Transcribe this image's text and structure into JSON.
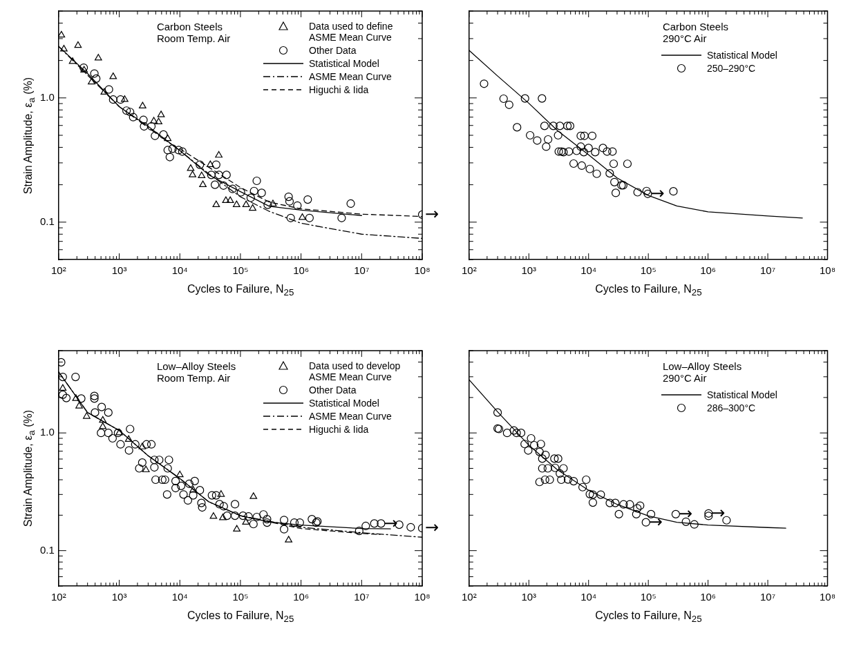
{
  "chart_data": [
    {
      "type": "scatter",
      "xlabel": "Cycles to Failure, N$_{25}$",
      "ylabel": "Strain Amplitude, ε$_{a}$ (%)",
      "log": "xy",
      "grid": false,
      "legend": "top right",
      "xlim": [
        100,
        100000000.0
      ],
      "ylim": [
        0.05,
        5
      ],
      "xticks": [
        {
          "value": 100,
          "label": "10²"
        },
        {
          "value": 200,
          "label": null
        },
        {
          "value": 300,
          "label": null
        },
        {
          "value": 400,
          "label": null
        },
        {
          "value": 500,
          "label": null
        },
        {
          "value": 600,
          "label": null
        },
        {
          "value": 700,
          "label": null
        },
        {
          "value": 800,
          "label": null
        },
        {
          "value": 900,
          "label": null
        },
        {
          "value": 1000.0,
          "label": "10³"
        },
        {
          "value": 2000.0,
          "label": null
        },
        {
          "value": 3000.0,
          "label": null
        },
        {
          "value": 4000.0,
          "label": null
        },
        {
          "value": 5000.0,
          "label": null
        },
        {
          "value": 6000.0,
          "label": null
        },
        {
          "value": 7000.0,
          "label": null
        },
        {
          "value": 8000.0,
          "label": null
        },
        {
          "value": 9000.0,
          "label": null
        },
        {
          "value": 10000.0,
          "label": "10⁴"
        },
        {
          "value": 20000.0,
          "label": null
        },
        {
          "value": 30000.0,
          "label": null
        },
        {
          "value": 40000.0,
          "label": null
        },
        {
          "value": 50000.0,
          "label": null
        },
        {
          "value": 60000.0,
          "label": null
        },
        {
          "value": 70000.0,
          "label": null
        },
        {
          "value": 80000.0,
          "label": null
        },
        {
          "value": 90000.0,
          "label": null
        },
        {
          "value": 100000.0,
          "label": "10⁵"
        },
        {
          "value": 200000.0,
          "label": null
        },
        {
          "value": 300000.0,
          "label": null
        },
        {
          "value": 400000.0,
          "label": null
        },
        {
          "value": 500000.0,
          "label": null
        },
        {
          "value": 600000.0,
          "label": null
        },
        {
          "value": 700000.0,
          "label": null
        },
        {
          "value": 800000.0,
          "label": null
        },
        {
          "value": 900000.0,
          "label": null
        },
        {
          "value": 1000000.0,
          "label": "10⁶"
        },
        {
          "value": 2000000.0,
          "label": null
        },
        {
          "value": 3000000.0,
          "label": null
        },
        {
          "value": 4000000.0,
          "label": null
        },
        {
          "value": 5000000.0,
          "label": null
        },
        {
          "value": 6000000.0,
          "label": null
        },
        {
          "value": 7000000.0,
          "label": null
        },
        {
          "value": 8000000.0,
          "label": null
        },
        {
          "value": 9000000.0,
          "label": null
        },
        {
          "value": 10000000.0,
          "label": "10⁷"
        },
        {
          "value": 20000000.0,
          "label": null
        },
        {
          "value": 30000000.0,
          "label": null
        },
        {
          "value": 40000000.0,
          "label": null
        },
        {
          "value": 50000000.0,
          "label": null
        },
        {
          "value": 60000000.0,
          "label": null
        },
        {
          "value": 70000000.0,
          "label": null
        },
        {
          "value": 80000000.0,
          "label": null
        },
        {
          "value": 90000000.0,
          "label": null
        },
        {
          "value": 100000000.0,
          "label": "10⁸"
        }
      ],
      "yticks": [
        {
          "value": 0.05,
          "label": null
        },
        {
          "value": 0.06,
          "label": null
        },
        {
          "value": 0.07,
          "label": null
        },
        {
          "value": 0.08,
          "label": null
        },
        {
          "value": 0.09,
          "label": null
        },
        {
          "value": 0.1,
          "label": "0.1"
        },
        {
          "value": 0.2,
          "label": null
        },
        {
          "value": 0.3,
          "label": null
        },
        {
          "value": 0.4,
          "label": null
        },
        {
          "value": 0.5,
          "label": null
        },
        {
          "value": 0.6,
          "label": null
        },
        {
          "value": 0.7,
          "label": null
        },
        {
          "value": 0.8,
          "label": null
        },
        {
          "value": 0.9,
          "label": null
        },
        {
          "value": 1,
          "label": "1.0"
        },
        {
          "value": 2,
          "label": null
        },
        {
          "value": 3,
          "label": null
        },
        {
          "value": 4,
          "label": null
        },
        {
          "value": 5,
          "label": null
        }
      ],
      "annotations": [
        "Carbon Steels Room Temp. Air",
        {
          "text": "→",
          "x": 100000000.0,
          "y": 0.115
        }
      ],
      "series": [
        {
          "name": "Data used to define ASME Mean Curve",
          "type": "scatter",
          "marker": "triangle",
          "color": "#000000",
          "x": [
            111,
            122,
            209,
            170,
            263,
            452,
            349,
            566,
            794,
            1230,
            2430,
            4900,
            3720,
            4470,
            6310,
            15100,
            16200,
            22900,
            24000,
            31800,
            44000,
            39800,
            57500,
            67800,
            86300,
            124000,
            159000,
            344000,
            1050000
          ],
          "values": [
            3.2,
            2.47,
            2.64,
            1.96,
            1.67,
            2.09,
            1.34,
            1.11,
            1.48,
            0.97,
            0.86,
            0.73,
            0.65,
            0.64,
            0.47,
            0.27,
            0.24,
            0.236,
            0.2,
            0.29,
            0.345,
            0.138,
            0.149,
            0.149,
            0.138,
            0.138,
            0.129,
            0.14,
            0.109
          ]
        },
        {
          "name": "Other Data",
          "type": "scatter",
          "marker": "circle",
          "color": "#000000",
          "x": [
            259,
            389,
            417,
            676,
            794,
            1050,
            1320,
            1510,
            1700,
            2510,
            2570,
            3390,
            3890,
            5370,
            6310,
            6840,
            7590,
            9550,
            11000,
            21400,
            39800,
            33100,
            44200,
            58900,
            38000,
            52500,
            74100,
            102000,
            168000,
            186000,
            224000,
            148000,
            282000,
            624000,
            646000,
            871000,
            1290000,
            676000,
            1380000,
            4680000,
            6610000,
            100000000.0
          ],
          "values": [
            1.75,
            1.57,
            1.43,
            1.17,
            0.97,
            0.97,
            0.79,
            0.77,
            0.7,
            0.665,
            0.59,
            0.59,
            0.495,
            0.507,
            0.38,
            0.334,
            0.39,
            0.38,
            0.37,
            0.29,
            0.29,
            0.24,
            0.24,
            0.24,
            0.2,
            0.197,
            0.185,
            0.174,
            0.178,
            0.215,
            0.172,
            0.157,
            0.138,
            0.16,
            0.147,
            0.136,
            0.152,
            0.108,
            0.108,
            0.108,
            0.141,
            0.115
          ]
        },
        {
          "name": "Statistical Model",
          "type": "line",
          "line_style": "solid",
          "marker": "none",
          "color": "#000000",
          "x": [
            100,
            300,
            1000,
            3000,
            10000,
            30000,
            100000,
            300000,
            1000000.0,
            10000000.0
          ],
          "values": [
            2.6,
            1.57,
            0.85,
            0.59,
            0.377,
            0.24,
            0.176,
            0.134,
            0.125,
            0.113
          ]
        },
        {
          "name": "ASME Mean Curve",
          "type": "line",
          "line_style": "dashdot",
          "marker": "none",
          "color": "#000000",
          "x": [
            100,
            1000,
            10000,
            30000,
            100000,
            300000,
            1000000.0,
            10000000.0,
            100000000.0
          ],
          "values": [
            2.6,
            0.85,
            0.377,
            0.245,
            0.16,
            0.122,
            0.098,
            0.08,
            0.074
          ]
        },
        {
          "name": "Higuchi & Iida",
          "type": "line",
          "line_style": "dashed",
          "marker": "none",
          "color": "#000000",
          "x": [
            10000,
            100000,
            300000,
            1000000.0,
            10000000.0,
            100000000.0
          ],
          "values": [
            0.39,
            0.19,
            0.145,
            0.128,
            0.116,
            0.111
          ]
        }
      ]
    },
    {
      "type": "scatter",
      "xlabel": "Cycles to Failure, N$_{25}$",
      "log": "xy",
      "grid": false,
      "legend": "top right",
      "tick_labels": "x",
      "xlim": [
        100,
        100000000.0
      ],
      "ylim": [
        0.05,
        5
      ],
      "xticks": [
        {
          "value": 100,
          "label": "10²"
        },
        {
          "value": 200,
          "label": null
        },
        {
          "value": 300,
          "label": null
        },
        {
          "value": 400,
          "label": null
        },
        {
          "value": 500,
          "label": null
        },
        {
          "value": 600,
          "label": null
        },
        {
          "value": 700,
          "label": null
        },
        {
          "value": 800,
          "label": null
        },
        {
          "value": 900,
          "label": null
        },
        {
          "value": 1000.0,
          "label": "10³"
        },
        {
          "value": 2000.0,
          "label": null
        },
        {
          "value": 3000.0,
          "label": null
        },
        {
          "value": 4000.0,
          "label": null
        },
        {
          "value": 5000.0,
          "label": null
        },
        {
          "value": 6000.0,
          "label": null
        },
        {
          "value": 7000.0,
          "label": null
        },
        {
          "value": 8000.0,
          "label": null
        },
        {
          "value": 9000.0,
          "label": null
        },
        {
          "value": 10000.0,
          "label": "10⁴"
        },
        {
          "value": 20000.0,
          "label": null
        },
        {
          "value": 30000.0,
          "label": null
        },
        {
          "value": 40000.0,
          "label": null
        },
        {
          "value": 50000.0,
          "label": null
        },
        {
          "value": 60000.0,
          "label": null
        },
        {
          "value": 70000.0,
          "label": null
        },
        {
          "value": 80000.0,
          "label": null
        },
        {
          "value": 90000.0,
          "label": null
        },
        {
          "value": 100000.0,
          "label": "10⁵"
        },
        {
          "value": 200000.0,
          "label": null
        },
        {
          "value": 300000.0,
          "label": null
        },
        {
          "value": 400000.0,
          "label": null
        },
        {
          "value": 500000.0,
          "label": null
        },
        {
          "value": 600000.0,
          "label": null
        },
        {
          "value": 700000.0,
          "label": null
        },
        {
          "value": 800000.0,
          "label": null
        },
        {
          "value": 900000.0,
          "label": null
        },
        {
          "value": 1000000.0,
          "label": "10⁶"
        },
        {
          "value": 2000000.0,
          "label": null
        },
        {
          "value": 3000000.0,
          "label": null
        },
        {
          "value": 4000000.0,
          "label": null
        },
        {
          "value": 5000000.0,
          "label": null
        },
        {
          "value": 6000000.0,
          "label": null
        },
        {
          "value": 7000000.0,
          "label": null
        },
        {
          "value": 8000000.0,
          "label": null
        },
        {
          "value": 9000000.0,
          "label": null
        },
        {
          "value": 10000000.0,
          "label": "10⁷"
        },
        {
          "value": 20000000.0,
          "label": null
        },
        {
          "value": 30000000.0,
          "label": null
        },
        {
          "value": 40000000.0,
          "label": null
        },
        {
          "value": 50000000.0,
          "label": null
        },
        {
          "value": 60000000.0,
          "label": null
        },
        {
          "value": 70000000.0,
          "label": null
        },
        {
          "value": 80000000.0,
          "label": null
        },
        {
          "value": 90000000.0,
          "label": null
        },
        {
          "value": 100000000.0,
          "label": "10⁸"
        }
      ],
      "yticks": [
        {
          "value": 0.05,
          "label": null
        },
        {
          "value": 0.06,
          "label": null
        },
        {
          "value": 0.07,
          "label": null
        },
        {
          "value": 0.08,
          "label": null
        },
        {
          "value": 0.09,
          "label": null
        },
        {
          "value": 0.1,
          "label": null
        },
        {
          "value": 0.2,
          "label": null
        },
        {
          "value": 0.3,
          "label": null
        },
        {
          "value": 0.4,
          "label": null
        },
        {
          "value": 0.5,
          "label": null
        },
        {
          "value": 0.6,
          "label": null
        },
        {
          "value": 0.7,
          "label": null
        },
        {
          "value": 0.8,
          "label": null
        },
        {
          "value": 0.9,
          "label": null
        },
        {
          "value": 1,
          "label": null
        },
        {
          "value": 2,
          "label": null
        },
        {
          "value": 3,
          "label": null
        },
        {
          "value": 4,
          "label": null
        },
        {
          "value": 5,
          "label": null
        }
      ],
      "annotations": [
        "Carbon Steels 290°C Air",
        {
          "text": "→",
          "x": 98000,
          "y": 0.169
        }
      ],
      "series": [
        {
          "name": "Statistical Model",
          "type": "line",
          "line_style": "solid",
          "marker": "none",
          "color": "#000000",
          "x": [
            100,
            300,
            1000,
            3000,
            10000,
            30000,
            100000,
            300000,
            1000000.0,
            10000000.0,
            38000000.0
          ],
          "values": [
            2.41,
            1.5,
            0.905,
            0.547,
            0.348,
            0.227,
            0.164,
            0.135,
            0.121,
            0.112,
            0.108
          ]
        },
        {
          "name": "250–290°C",
          "type": "scatter",
          "marker": "circle",
          "color": "#000000",
          "x": [
            178,
            378,
            468,
            863,
            1660,
            635,
            1050,
            1380,
            1950,
            2100,
            1830,
            2570,
            3310,
            4420,
            4900,
            3090,
            3170,
            3510,
            3800,
            4680,
            6310,
            5620,
            7690,
            10500,
            13700,
            7400,
            8510,
            11500,
            7400,
            10000,
            8320,
            12900,
            17400,
            20400,
            25100,
            26300,
            44700,
            22600,
            27100,
            28500,
            35600,
            38000,
            66100,
            93500,
            98000,
            263000
          ],
          "values": [
            1.3,
            0.985,
            0.88,
            0.99,
            0.99,
            0.58,
            0.5,
            0.454,
            0.405,
            0.463,
            0.595,
            0.595,
            0.595,
            0.595,
            0.595,
            0.5,
            0.37,
            0.37,
            0.366,
            0.37,
            0.375,
            0.296,
            0.285,
            0.268,
            0.245,
            0.495,
            0.495,
            0.495,
            0.405,
            0.395,
            0.366,
            0.366,
            0.395,
            0.37,
            0.37,
            0.295,
            0.295,
            0.247,
            0.21,
            0.172,
            0.198,
            0.198,
            0.174,
            0.178,
            0.169,
            0.177
          ]
        }
      ]
    },
    {
      "type": "scatter",
      "xlabel": "Cycles to Failure, N$_{25}$",
      "ylabel": "Strain Amplitude, ε$_{a}$ (%)",
      "log": "xy",
      "grid": false,
      "legend": "top right",
      "xlim": [
        100,
        100000000.0
      ],
      "ylim": [
        0.05,
        5
      ],
      "xticks": [
        {
          "value": 100,
          "label": "10²"
        },
        {
          "value": 200,
          "label": null
        },
        {
          "value": 300,
          "label": null
        },
        {
          "value": 400,
          "label": null
        },
        {
          "value": 500,
          "label": null
        },
        {
          "value": 600,
          "label": null
        },
        {
          "value": 700,
          "label": null
        },
        {
          "value": 800,
          "label": null
        },
        {
          "value": 900,
          "label": null
        },
        {
          "value": 1000.0,
          "label": "10³"
        },
        {
          "value": 2000.0,
          "label": null
        },
        {
          "value": 3000.0,
          "label": null
        },
        {
          "value": 4000.0,
          "label": null
        },
        {
          "value": 5000.0,
          "label": null
        },
        {
          "value": 6000.0,
          "label": null
        },
        {
          "value": 7000.0,
          "label": null
        },
        {
          "value": 8000.0,
          "label": null
        },
        {
          "value": 9000.0,
          "label": null
        },
        {
          "value": 10000.0,
          "label": "10⁴"
        },
        {
          "value": 20000.0,
          "label": null
        },
        {
          "value": 30000.0,
          "label": null
        },
        {
          "value": 40000.0,
          "label": null
        },
        {
          "value": 50000.0,
          "label": null
        },
        {
          "value": 60000.0,
          "label": null
        },
        {
          "value": 70000.0,
          "label": null
        },
        {
          "value": 80000.0,
          "label": null
        },
        {
          "value": 90000.0,
          "label": null
        },
        {
          "value": 100000.0,
          "label": "10⁵"
        },
        {
          "value": 200000.0,
          "label": null
        },
        {
          "value": 300000.0,
          "label": null
        },
        {
          "value": 400000.0,
          "label": null
        },
        {
          "value": 500000.0,
          "label": null
        },
        {
          "value": 600000.0,
          "label": null
        },
        {
          "value": 700000.0,
          "label": null
        },
        {
          "value": 800000.0,
          "label": null
        },
        {
          "value": 900000.0,
          "label": null
        },
        {
          "value": 1000000.0,
          "label": "10⁶"
        },
        {
          "value": 2000000.0,
          "label": null
        },
        {
          "value": 3000000.0,
          "label": null
        },
        {
          "value": 4000000.0,
          "label": null
        },
        {
          "value": 5000000.0,
          "label": null
        },
        {
          "value": 6000000.0,
          "label": null
        },
        {
          "value": 7000000.0,
          "label": null
        },
        {
          "value": 8000000.0,
          "label": null
        },
        {
          "value": 9000000.0,
          "label": null
        },
        {
          "value": 10000000.0,
          "label": "10⁷"
        },
        {
          "value": 20000000.0,
          "label": null
        },
        {
          "value": 30000000.0,
          "label": null
        },
        {
          "value": 40000000.0,
          "label": null
        },
        {
          "value": 50000000.0,
          "label": null
        },
        {
          "value": 60000000.0,
          "label": null
        },
        {
          "value": 70000000.0,
          "label": null
        },
        {
          "value": 80000000.0,
          "label": null
        },
        {
          "value": 90000000.0,
          "label": null
        },
        {
          "value": 100000000.0,
          "label": "10⁸"
        }
      ],
      "yticks": [
        {
          "value": 0.05,
          "label": null
        },
        {
          "value": 0.06,
          "label": null
        },
        {
          "value": 0.07,
          "label": null
        },
        {
          "value": 0.08,
          "label": null
        },
        {
          "value": 0.09,
          "label": null
        },
        {
          "value": 0.1,
          "label": "0.1"
        },
        {
          "value": 0.2,
          "label": null
        },
        {
          "value": 0.3,
          "label": null
        },
        {
          "value": 0.4,
          "label": null
        },
        {
          "value": 0.5,
          "label": null
        },
        {
          "value": 0.6,
          "label": null
        },
        {
          "value": 0.7,
          "label": null
        },
        {
          "value": 0.8,
          "label": null
        },
        {
          "value": 0.9,
          "label": null
        },
        {
          "value": 1,
          "label": "1.0"
        },
        {
          "value": 2,
          "label": null
        },
        {
          "value": 3,
          "label": null
        },
        {
          "value": 4,
          "label": null
        },
        {
          "value": 5,
          "label": null
        }
      ],
      "annotations": [
        "Low–Alloy Steels Room Temp. Air",
        {
          "text": "→",
          "x": 20900000.0,
          "y": 0.17
        },
        {
          "text": "→",
          "x": 100000000.0,
          "y": 0.155
        }
      ],
      "series": [
        {
          "name": "Data used to develop ASME Mean Curve",
          "type": "scatter",
          "marker": "triangle",
          "color": "#000000",
          "x": [
            117,
            193,
            218,
            290,
            535,
            535,
            1000,
            1430,
            2400,
            2760,
            10000,
            16600,
            47900,
            35900,
            51300,
            87100,
            123000,
            164000,
            624000
          ],
          "values": [
            2.39,
            1.96,
            1.69,
            1.38,
            1.28,
            1.13,
            1.0,
            0.88,
            0.76,
            0.485,
            0.44,
            0.326,
            0.3,
            0.195,
            0.19,
            0.152,
            0.174,
            0.288,
            0.123
          ]
        },
        {
          "name": "Other Data",
          "type": "scatter",
          "marker": "circle",
          "color": "#000000",
          "x": [
            110,
            117,
            190,
            134,
            117,
            236,
            389,
            389,
            513,
            398,
            661,
            501,
            661,
            776,
            955,
            1510,
            1050,
            1450,
            1840,
            3390,
            2820,
            2140,
            2400,
            3800,
            4570,
            6610,
            3800,
            6310,
            3980,
            5130,
            5690,
            8510,
            8510,
            10500,
            14300,
            17600,
            6170,
            11500,
            13600,
            16600,
            21400,
            22700,
            23400,
            33900,
            39800,
            45200,
            53100,
            81300,
            60300,
            81300,
            110000,
            136000,
            186000,
            240000,
            275000,
            164000,
            275000,
            525000,
            525000,
            776000,
            955000,
            1510000,
            1780000,
            1860000,
            9120000,
            11700000,
            16200000,
            20900000,
            41700000,
            64600000,
            100000000.0
          ],
          "values": [
            3.98,
            2.99,
            2.99,
            1.98,
            2.11,
            1.96,
            2.06,
            1.96,
            1.66,
            1.49,
            1.49,
            1.0,
            1.0,
            0.9,
            1.0,
            1.08,
            0.8,
            0.71,
            0.8,
            0.8,
            0.8,
            0.5,
            0.56,
            0.59,
            0.59,
            0.59,
            0.51,
            0.5,
            0.4,
            0.4,
            0.4,
            0.39,
            0.34,
            0.355,
            0.37,
            0.39,
            0.3,
            0.3,
            0.267,
            0.295,
            0.326,
            0.254,
            0.233,
            0.295,
            0.295,
            0.248,
            0.238,
            0.248,
            0.198,
            0.198,
            0.198,
            0.195,
            0.193,
            0.203,
            0.185,
            0.168,
            0.173,
            0.182,
            0.152,
            0.173,
            0.173,
            0.185,
            0.173,
            0.177,
            0.147,
            0.162,
            0.17,
            0.17,
            0.166,
            0.158,
            0.155
          ]
        },
        {
          "name": "Statistical Model",
          "type": "line",
          "line_style": "solid",
          "marker": "none",
          "color": "#000000",
          "x": [
            100,
            300,
            1000,
            3000,
            10000,
            30000,
            100000,
            300000,
            1000000.0,
            10000000.0,
            30000000.0
          ],
          "values": [
            3.3,
            1.49,
            1.05,
            0.64,
            0.41,
            0.26,
            0.198,
            0.175,
            0.165,
            0.154,
            0.153
          ]
        },
        {
          "name": "ASME Mean Curve",
          "type": "line",
          "line_style": "dashdot",
          "marker": "none",
          "color": "#000000",
          "x": [
            100,
            300,
            1000,
            3000,
            10000,
            30000,
            100000,
            1000000.0,
            10000000.0,
            100000000.0
          ],
          "values": [
            3.3,
            1.49,
            1.05,
            0.64,
            0.41,
            0.26,
            0.198,
            0.158,
            0.142,
            0.13
          ]
        },
        {
          "name": "Higuchi & Iida",
          "type": "line",
          "line_style": "dashed",
          "marker": "none",
          "color": "#000000",
          "x": [
            100000,
            1000000.0,
            3000000.0,
            10000000.0,
            20000000.0
          ],
          "values": [
            0.198,
            0.154,
            0.147,
            0.14,
            0.137
          ]
        }
      ]
    },
    {
      "type": "scatter",
      "xlabel": "Cycles to Failure, N$_{25}$",
      "log": "xy",
      "grid": false,
      "legend": "top right",
      "tick_labels": "x",
      "xlim": [
        100,
        100000000.0
      ],
      "ylim": [
        0.05,
        5
      ],
      "xticks": [
        {
          "value": 100,
          "label": "10²"
        },
        {
          "value": 200,
          "label": null
        },
        {
          "value": 300,
          "label": null
        },
        {
          "value": 400,
          "label": null
        },
        {
          "value": 500,
          "label": null
        },
        {
          "value": 600,
          "label": null
        },
        {
          "value": 700,
          "label": null
        },
        {
          "value": 800,
          "label": null
        },
        {
          "value": 900,
          "label": null
        },
        {
          "value": 1000.0,
          "label": "10³"
        },
        {
          "value": 2000.0,
          "label": null
        },
        {
          "value": 3000.0,
          "label": null
        },
        {
          "value": 4000.0,
          "label": null
        },
        {
          "value": 5000.0,
          "label": null
        },
        {
          "value": 6000.0,
          "label": null
        },
        {
          "value": 7000.0,
          "label": null
        },
        {
          "value": 8000.0,
          "label": null
        },
        {
          "value": 9000.0,
          "label": null
        },
        {
          "value": 10000.0,
          "label": "10⁴"
        },
        {
          "value": 20000.0,
          "label": null
        },
        {
          "value": 30000.0,
          "label": null
        },
        {
          "value": 40000.0,
          "label": null
        },
        {
          "value": 50000.0,
          "label": null
        },
        {
          "value": 60000.0,
          "label": null
        },
        {
          "value": 70000.0,
          "label": null
        },
        {
          "value": 80000.0,
          "label": null
        },
        {
          "value": 90000.0,
          "label": null
        },
        {
          "value": 100000.0,
          "label": "10⁵"
        },
        {
          "value": 200000.0,
          "label": null
        },
        {
          "value": 300000.0,
          "label": null
        },
        {
          "value": 400000.0,
          "label": null
        },
        {
          "value": 500000.0,
          "label": null
        },
        {
          "value": 600000.0,
          "label": null
        },
        {
          "value": 700000.0,
          "label": null
        },
        {
          "value": 800000.0,
          "label": null
        },
        {
          "value": 900000.0,
          "label": null
        },
        {
          "value": 1000000.0,
          "label": "10⁶"
        },
        {
          "value": 2000000.0,
          "label": null
        },
        {
          "value": 3000000.0,
          "label": null
        },
        {
          "value": 4000000.0,
          "label": null
        },
        {
          "value": 5000000.0,
          "label": null
        },
        {
          "value": 6000000.0,
          "label": null
        },
        {
          "value": 7000000.0,
          "label": null
        },
        {
          "value": 8000000.0,
          "label": null
        },
        {
          "value": 9000000.0,
          "label": null
        },
        {
          "value": 10000000.0,
          "label": "10⁷"
        },
        {
          "value": 20000000.0,
          "label": null
        },
        {
          "value": 30000000.0,
          "label": null
        },
        {
          "value": 40000000.0,
          "label": null
        },
        {
          "value": 50000000.0,
          "label": null
        },
        {
          "value": 60000000.0,
          "label": null
        },
        {
          "value": 70000000.0,
          "label": null
        },
        {
          "value": 80000000.0,
          "label": null
        },
        {
          "value": 90000000.0,
          "label": null
        },
        {
          "value": 100000000.0,
          "label": "10⁸"
        }
      ],
      "yticks": [
        {
          "value": 0.05,
          "label": null
        },
        {
          "value": 0.06,
          "label": null
        },
        {
          "value": 0.07,
          "label": null
        },
        {
          "value": 0.08,
          "label": null
        },
        {
          "value": 0.09,
          "label": null
        },
        {
          "value": 0.1,
          "label": null
        },
        {
          "value": 0.2,
          "label": null
        },
        {
          "value": 0.3,
          "label": null
        },
        {
          "value": 0.4,
          "label": null
        },
        {
          "value": 0.5,
          "label": null
        },
        {
          "value": 0.6,
          "label": null
        },
        {
          "value": 0.7,
          "label": null
        },
        {
          "value": 0.8,
          "label": null
        },
        {
          "value": 0.9,
          "label": null
        },
        {
          "value": 1,
          "label": null
        },
        {
          "value": 2,
          "label": null
        },
        {
          "value": 3,
          "label": null
        },
        {
          "value": 4,
          "label": null
        },
        {
          "value": 5,
          "label": null
        }
      ],
      "annotations": [
        "Low–Alloy Steels 290°C Air",
        {
          "text": "→",
          "x": 91200,
          "y": 0.174
        },
        {
          "text": "→",
          "x": 288000,
          "y": 0.204
        },
        {
          "text": "→",
          "x": 1020000,
          "y": 0.207
        }
      ],
      "series": [
        {
          "name": "Statistical Model",
          "type": "line",
          "line_style": "solid",
          "marker": "none",
          "color": "#000000",
          "x": [
            100,
            300,
            1000,
            3000,
            10000,
            30000,
            100000,
            300000,
            1000000.0,
            10000000.0,
            20000000.0
          ],
          "values": [
            2.83,
            1.51,
            0.786,
            0.487,
            0.326,
            0.247,
            0.197,
            0.174,
            0.165,
            0.157,
            0.155
          ]
        },
        {
          "name": "286–300°C",
          "type": "scatter",
          "marker": "circle",
          "color": "#000000",
          "x": [
            300,
            300,
            316,
            433,
            562,
            624,
            741,
            1090,
            851,
            977,
            1230,
            1590,
            1510,
            1900,
            1680,
            2680,
            3090,
            1680,
            2080,
            2750,
            3800,
            3310,
            1510,
            1870,
            2240,
            3490,
            4530,
            5620,
            9120,
            7940,
            10500,
            11800,
            16000,
            11800,
            22700,
            28000,
            38500,
            49000,
            72900,
            65400,
            32200,
            63000,
            111000,
            91200,
            288000,
            427000,
            589000,
            1020000,
            1020000,
            2040000
          ],
          "values": [
            1.49,
            1.09,
            1.08,
            1.0,
            1.05,
            1.0,
            1.0,
            0.9,
            0.805,
            0.71,
            0.786,
            0.805,
            0.69,
            0.65,
            0.605,
            0.605,
            0.605,
            0.5,
            0.5,
            0.505,
            0.5,
            0.452,
            0.383,
            0.4,
            0.4,
            0.4,
            0.402,
            0.389,
            0.4,
            0.346,
            0.302,
            0.299,
            0.299,
            0.256,
            0.254,
            0.254,
            0.247,
            0.247,
            0.241,
            0.229,
            0.204,
            0.204,
            0.204,
            0.174,
            0.204,
            0.176,
            0.167,
            0.207,
            0.197,
            0.181
          ]
        }
      ]
    }
  ]
}
